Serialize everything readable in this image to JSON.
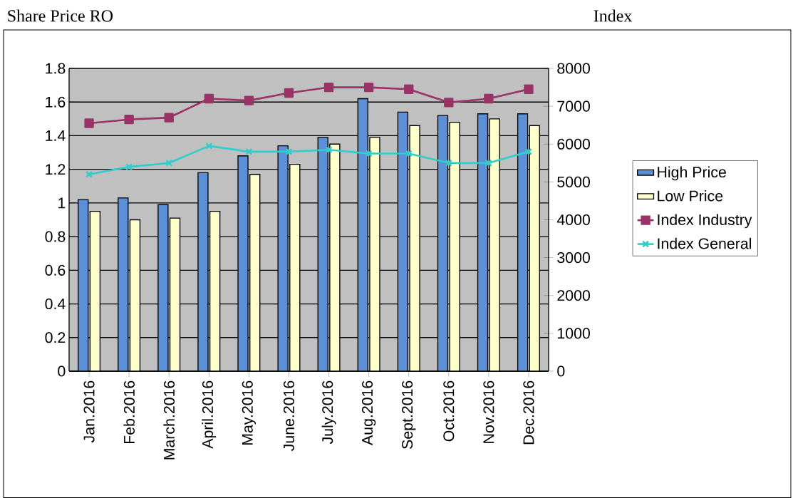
{
  "chart_data": {
    "type": "bar",
    "ylabel": "Share Price RO",
    "y2label": "Index",
    "categories": [
      "Jan.2016",
      "Feb.2016",
      "March.2016",
      "April.2016",
      "May.2016",
      "June.2016",
      "July.2016",
      "Aug.2016",
      "Sept.2016",
      "Oct.2016",
      "Nov.2016",
      "Dec.2016"
    ],
    "series": [
      {
        "name": "High Price",
        "color": "#5b8fd6",
        "values": [
          1.02,
          1.03,
          0.99,
          1.18,
          1.28,
          1.34,
          1.39,
          1.62,
          1.54,
          1.52,
          1.53,
          1.53
        ]
      },
      {
        "name": "Low Price",
        "color": "#ffffcc",
        "values": [
          0.95,
          0.9,
          0.91,
          0.95,
          1.17,
          1.23,
          1.35,
          1.39,
          1.46,
          1.48,
          1.5,
          1.46
        ]
      },
      {
        "name": "Index Industry",
        "type": "line",
        "axis": "y2",
        "marker": "square",
        "color": "#993366",
        "values": [
          6550,
          6650,
          6700,
          7200,
          7150,
          7350,
          7500,
          7500,
          7450,
          7100,
          7200,
          7450
        ]
      },
      {
        "name": "Index General",
        "type": "line",
        "axis": "y2",
        "marker": "cross",
        "color": "#33cccc",
        "values": [
          5200,
          5400,
          5500,
          5950,
          5800,
          5800,
          5850,
          5750,
          5750,
          5500,
          5500,
          5800
        ]
      }
    ],
    "ylim": [
      0,
      1.8
    ],
    "yticks": [
      0,
      0.2,
      0.4,
      0.6,
      0.8,
      1,
      1.2,
      1.4,
      1.6,
      1.8
    ],
    "y2lim": [
      0,
      8000
    ],
    "y2ticks": [
      0,
      1000,
      2000,
      3000,
      4000,
      5000,
      6000,
      7000,
      8000
    ],
    "grid": "y",
    "legend": "right"
  }
}
